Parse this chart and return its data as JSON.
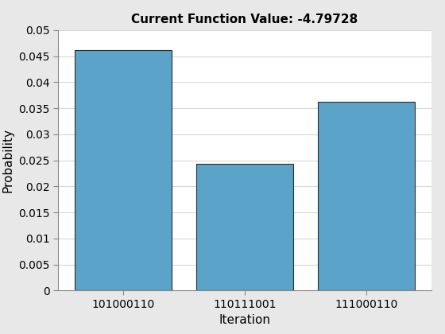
{
  "categories": [
    "101000110",
    "110111001",
    "111000110"
  ],
  "values": [
    0.0461,
    0.0243,
    0.0362
  ],
  "bar_color": "#5BA3C9",
  "bar_edge_color": "#2C2C2C",
  "title": "Current Function Value: -4.79728",
  "xlabel": "Iteration",
  "ylabel": "Probability",
  "ylim": [
    0,
    0.05
  ],
  "yticks": [
    0,
    0.005,
    0.01,
    0.015,
    0.02,
    0.025,
    0.03,
    0.035,
    0.04,
    0.045,
    0.05
  ],
  "title_fontsize": 11,
  "label_fontsize": 11,
  "tick_fontsize": 10,
  "fig_bg_color": "#E8E8E8",
  "axes_bg_color": "#FFFFFF",
  "grid_color": "#D8D8D8",
  "title_fontweight": "bold",
  "bar_width": 0.8,
  "bar_edge_width": 0.8
}
